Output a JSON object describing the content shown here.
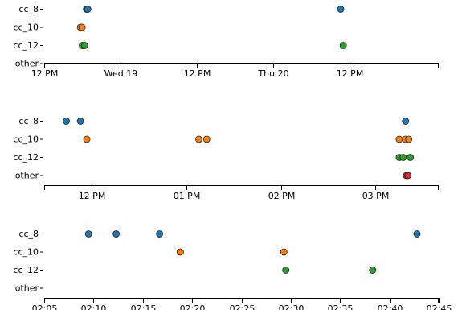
{
  "chart_data": [
    {
      "type": "scatter",
      "title": "",
      "xlabel": "",
      "ylabel": "",
      "x_unit": "hours from Tue 18 12:00",
      "xlim": [
        0,
        62
      ],
      "categories": [
        "cc_8",
        "cc_10",
        "cc_12",
        "other"
      ],
      "x_ticks": [
        {
          "v": 0,
          "label": "12 PM"
        },
        {
          "v": 12,
          "label": "Wed 19"
        },
        {
          "v": 24,
          "label": "12 PM"
        },
        {
          "v": 36,
          "label": "Thu 20"
        },
        {
          "v": 48,
          "label": "12 PM"
        }
      ],
      "points": [
        {
          "category": "cc_8",
          "x": 6.65,
          "color": "#1f77b4"
        },
        {
          "category": "cc_8",
          "x": 6.85,
          "color": "#1f77b4"
        },
        {
          "category": "cc_8",
          "x": 46.6,
          "color": "#1f77b4"
        },
        {
          "category": "cc_10",
          "x": 5.7,
          "color": "#ff7f0e"
        },
        {
          "category": "cc_10",
          "x": 5.95,
          "color": "#ff7f0e"
        },
        {
          "category": "cc_12",
          "x": 6.0,
          "color": "#2ca02c"
        },
        {
          "category": "cc_12",
          "x": 6.35,
          "color": "#2ca02c"
        },
        {
          "category": "cc_12",
          "x": 47.0,
          "color": "#2ca02c"
        }
      ]
    },
    {
      "type": "scatter",
      "title": "",
      "xlabel": "",
      "ylabel": "",
      "x_unit": "minutes from 12:00",
      "xlim": [
        -30,
        220
      ],
      "categories": [
        "cc_8",
        "cc_10",
        "cc_12",
        "other"
      ],
      "x_ticks": [
        {
          "v": 0,
          "label": "12 PM"
        },
        {
          "v": 60,
          "label": "01 PM"
        },
        {
          "v": 120,
          "label": "02 PM"
        },
        {
          "v": 180,
          "label": "03 PM"
        }
      ],
      "points": [
        {
          "category": "cc_8",
          "x": -16,
          "color": "#1f77b4"
        },
        {
          "category": "cc_8",
          "x": -7,
          "color": "#1f77b4"
        },
        {
          "category": "cc_8",
          "x": 199,
          "color": "#1f77b4"
        },
        {
          "category": "cc_10",
          "x": -3,
          "color": "#ff7f0e"
        },
        {
          "category": "cc_10",
          "x": 68,
          "color": "#ff7f0e"
        },
        {
          "category": "cc_10",
          "x": 73,
          "color": "#ff7f0e"
        },
        {
          "category": "cc_10",
          "x": 195,
          "color": "#ff7f0e"
        },
        {
          "category": "cc_10",
          "x": 199,
          "color": "#ff7f0e"
        },
        {
          "category": "cc_10",
          "x": 201,
          "color": "#ff7f0e"
        },
        {
          "category": "cc_12",
          "x": 195,
          "color": "#2ca02c"
        },
        {
          "category": "cc_12",
          "x": 197.5,
          "color": "#2ca02c"
        },
        {
          "category": "cc_12",
          "x": 202,
          "color": "#2ca02c"
        },
        {
          "category": "other",
          "x": 199.5,
          "color": "#d62728"
        },
        {
          "category": "other",
          "x": 200.5,
          "color": "#d62728"
        }
      ]
    },
    {
      "type": "scatter",
      "title": "",
      "xlabel": "",
      "ylabel": "",
      "x_unit": "minutes from 02:00",
      "xlim": [
        5,
        45
      ],
      "categories": [
        "cc_8",
        "cc_10",
        "cc_12",
        "other"
      ],
      "x_ticks": [
        {
          "v": 5,
          "label": "02:05"
        },
        {
          "v": 10,
          "label": "02:10"
        },
        {
          "v": 15,
          "label": "02:15"
        },
        {
          "v": 20,
          "label": "02:20"
        },
        {
          "v": 25,
          "label": "02:25"
        },
        {
          "v": 30,
          "label": "02:30"
        },
        {
          "v": 35,
          "label": "02:35"
        },
        {
          "v": 40,
          "label": "02:40"
        },
        {
          "v": 45,
          "label": "02:45"
        }
      ],
      "points": [
        {
          "category": "cc_8",
          "x": 9.5,
          "color": "#1f77b4"
        },
        {
          "category": "cc_8",
          "x": 12.3,
          "color": "#1f77b4"
        },
        {
          "category": "cc_8",
          "x": 16.7,
          "color": "#1f77b4"
        },
        {
          "category": "cc_8",
          "x": 42.8,
          "color": "#1f77b4"
        },
        {
          "category": "cc_10",
          "x": 18.8,
          "color": "#ff7f0e"
        },
        {
          "category": "cc_10",
          "x": 29.3,
          "color": "#ff7f0e"
        },
        {
          "category": "cc_12",
          "x": 29.5,
          "color": "#2ca02c"
        },
        {
          "category": "cc_12",
          "x": 38.3,
          "color": "#2ca02c"
        }
      ]
    }
  ]
}
